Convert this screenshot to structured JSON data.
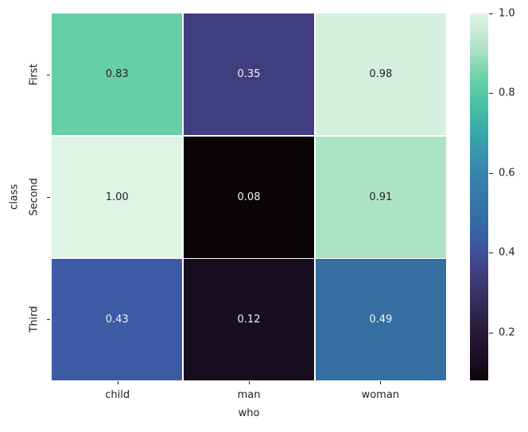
{
  "chart_data": {
    "type": "heatmap",
    "title": "",
    "xlabel": "who",
    "ylabel": "class",
    "x_categories": [
      "child",
      "man",
      "woman"
    ],
    "y_categories": [
      "First",
      "Second",
      "Third"
    ],
    "values": [
      [
        0.83,
        0.35,
        0.98
      ],
      [
        1.0,
        0.08,
        0.91
      ],
      [
        0.43,
        0.12,
        0.49
      ]
    ],
    "cell_labels": [
      [
        "0.83",
        "0.35",
        "0.98"
      ],
      [
        "1.00",
        "0.08",
        "0.91"
      ],
      [
        "0.43",
        "0.12",
        "0.49"
      ]
    ],
    "cell_colors": [
      [
        "#66CFA6",
        "#403E7E",
        "#D5F0DE"
      ],
      [
        "#DEF4E5",
        "#0B0507",
        "#ACE3C4"
      ],
      [
        "#3C5BA4",
        "#160D1E",
        "#356FA2"
      ]
    ],
    "cell_text_colors": [
      [
        "#262626",
        "#F2F2F2",
        "#262626"
      ],
      [
        "#262626",
        "#F2F2F2",
        "#262626"
      ],
      [
        "#F2F2F2",
        "#F2F2F2",
        "#F2F2F2"
      ]
    ],
    "colormap": "mako",
    "grid_line_color": "#FFFFFF",
    "axis_text_color": "#1F1F1F",
    "background_color": "#FFFFFF",
    "legend_position": "none",
    "colorbar": {
      "vmin": 0.08,
      "vmax": 1.0,
      "tick_values": [
        1.0,
        0.8,
        0.6,
        0.4,
        0.2
      ],
      "tick_labels": [
        "1.0",
        "0.8",
        "0.6",
        "0.4",
        "0.2"
      ],
      "gradient_stops": [
        {
          "pos": 0,
          "color": "#DEF4E5"
        },
        {
          "pos": 2.2,
          "color": "#D5F0DE"
        },
        {
          "pos": 9.8,
          "color": "#ACE3C4"
        },
        {
          "pos": 18.5,
          "color": "#66CFA6"
        },
        {
          "pos": 25,
          "color": "#48C2A3"
        },
        {
          "pos": 33,
          "color": "#37A6AA"
        },
        {
          "pos": 43.5,
          "color": "#3884AF"
        },
        {
          "pos": 55.4,
          "color": "#356FA2"
        },
        {
          "pos": 62,
          "color": "#3C5BA4"
        },
        {
          "pos": 70.7,
          "color": "#403E7E"
        },
        {
          "pos": 78,
          "color": "#352F5E"
        },
        {
          "pos": 87,
          "color": "#261A36"
        },
        {
          "pos": 95.7,
          "color": "#160D1E"
        },
        {
          "pos": 100,
          "color": "#0B0507"
        }
      ]
    }
  }
}
